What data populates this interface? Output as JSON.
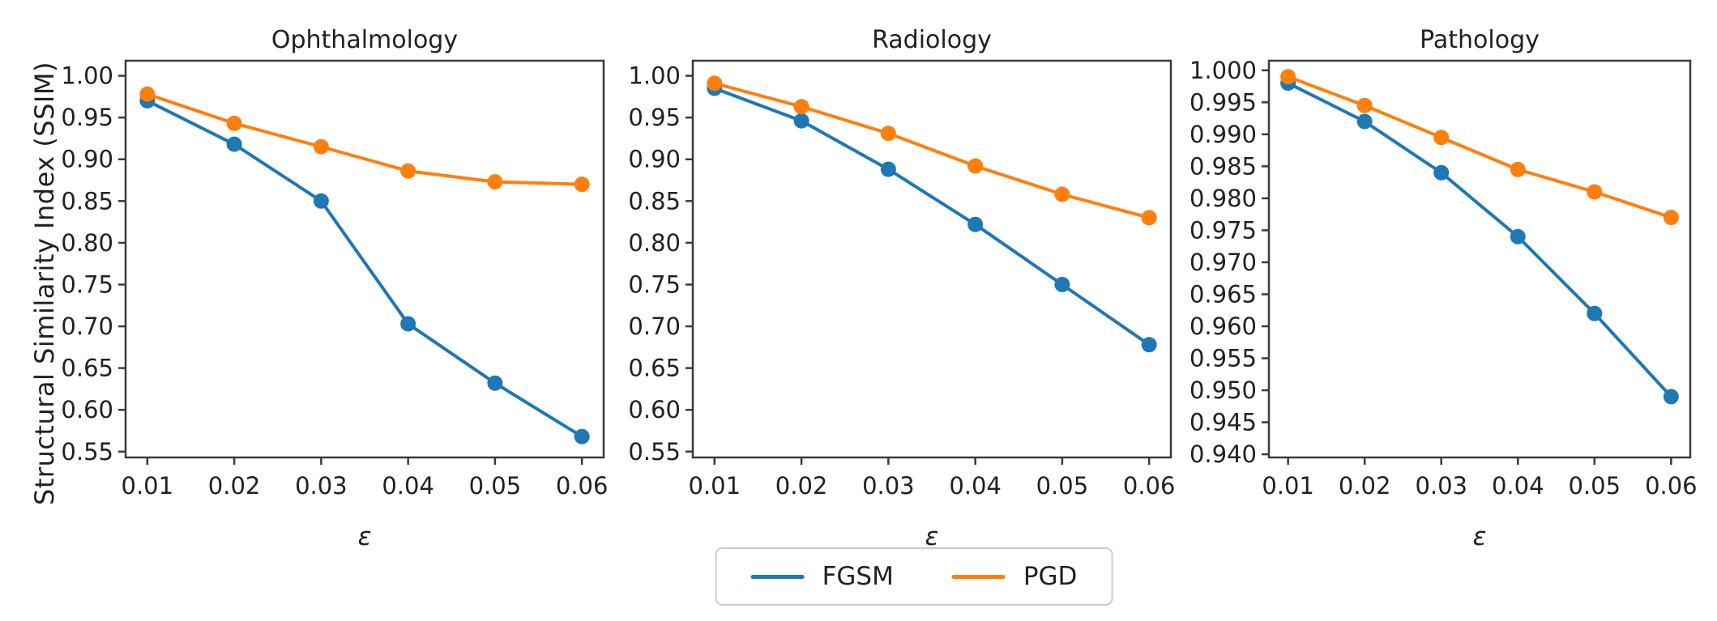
{
  "figure": {
    "ylabel": "Structural Similarity Index (SSIM)",
    "xlabel": "ε",
    "background": "#ffffff",
    "text_color": "#212121",
    "axis_color": "#3a3a3a",
    "legend_position": "bottom-center",
    "legend": [
      {
        "label": "FGSM",
        "color": "#1f77b4"
      },
      {
        "label": "PGD",
        "color": "#ff7f0e"
      }
    ]
  },
  "chart_data": [
    {
      "type": "line",
      "title": "Ophthalmology",
      "xlabel": "ε",
      "ylabel": "Structural Similarity Index (SSIM)",
      "x": [
        0.01,
        0.02,
        0.03,
        0.04,
        0.05,
        0.06
      ],
      "xtick_labels": [
        "0.01",
        "0.02",
        "0.03",
        "0.04",
        "0.05",
        "0.06"
      ],
      "xlim": [
        0.0075,
        0.0625
      ],
      "ylim": [
        0.543,
        1.018
      ],
      "yticks": [
        0.55,
        0.6,
        0.65,
        0.7,
        0.75,
        0.8,
        0.85,
        0.9,
        0.95,
        1.0
      ],
      "ytick_labels": [
        "0.55",
        "0.60",
        "0.65",
        "0.70",
        "0.75",
        "0.80",
        "0.85",
        "0.90",
        "0.95",
        "1.00"
      ],
      "grid": false,
      "series": [
        {
          "name": "FGSM",
          "color": "#1f77b4",
          "values": [
            0.97,
            0.918,
            0.85,
            0.703,
            0.632,
            0.568
          ]
        },
        {
          "name": "PGD",
          "color": "#ff7f0e",
          "values": [
            0.978,
            0.943,
            0.915,
            0.886,
            0.873,
            0.87
          ]
        }
      ]
    },
    {
      "type": "line",
      "title": "Radiology",
      "xlabel": "ε",
      "ylabel": "Structural Similarity Index (SSIM)",
      "x": [
        0.01,
        0.02,
        0.03,
        0.04,
        0.05,
        0.06
      ],
      "xtick_labels": [
        "0.01",
        "0.02",
        "0.03",
        "0.04",
        "0.05",
        "0.06"
      ],
      "xlim": [
        0.0075,
        0.0625
      ],
      "ylim": [
        0.543,
        1.018
      ],
      "yticks": [
        0.55,
        0.6,
        0.65,
        0.7,
        0.75,
        0.8,
        0.85,
        0.9,
        0.95,
        1.0
      ],
      "ytick_labels": [
        "0.55",
        "0.60",
        "0.65",
        "0.70",
        "0.75",
        "0.80",
        "0.85",
        "0.90",
        "0.95",
        "1.00"
      ],
      "grid": false,
      "series": [
        {
          "name": "FGSM",
          "color": "#1f77b4",
          "values": [
            0.985,
            0.946,
            0.888,
            0.822,
            0.75,
            0.678
          ]
        },
        {
          "name": "PGD",
          "color": "#ff7f0e",
          "values": [
            0.991,
            0.963,
            0.931,
            0.892,
            0.858,
            0.83
          ]
        }
      ]
    },
    {
      "type": "line",
      "title": "Pathology",
      "xlabel": "ε",
      "ylabel": "Structural Similarity Index (SSIM)",
      "x": [
        0.01,
        0.02,
        0.03,
        0.04,
        0.05,
        0.06
      ],
      "xtick_labels": [
        "0.01",
        "0.02",
        "0.03",
        "0.04",
        "0.05",
        "0.06"
      ],
      "xlim": [
        0.0075,
        0.0625
      ],
      "ylim": [
        0.9395,
        1.0015
      ],
      "yticks": [
        0.94,
        0.945,
        0.95,
        0.955,
        0.96,
        0.965,
        0.97,
        0.975,
        0.98,
        0.985,
        0.99,
        0.995,
        1.0
      ],
      "ytick_labels": [
        "0.940",
        "0.945",
        "0.950",
        "0.955",
        "0.960",
        "0.965",
        "0.970",
        "0.975",
        "0.980",
        "0.985",
        "0.990",
        "0.995",
        "1.000"
      ],
      "grid": false,
      "series": [
        {
          "name": "FGSM",
          "color": "#1f77b4",
          "values": [
            0.998,
            0.992,
            0.984,
            0.974,
            0.962,
            0.949
          ]
        },
        {
          "name": "PGD",
          "color": "#ff7f0e",
          "values": [
            0.999,
            0.9945,
            0.9895,
            0.9845,
            0.981,
            0.977
          ]
        }
      ]
    }
  ]
}
